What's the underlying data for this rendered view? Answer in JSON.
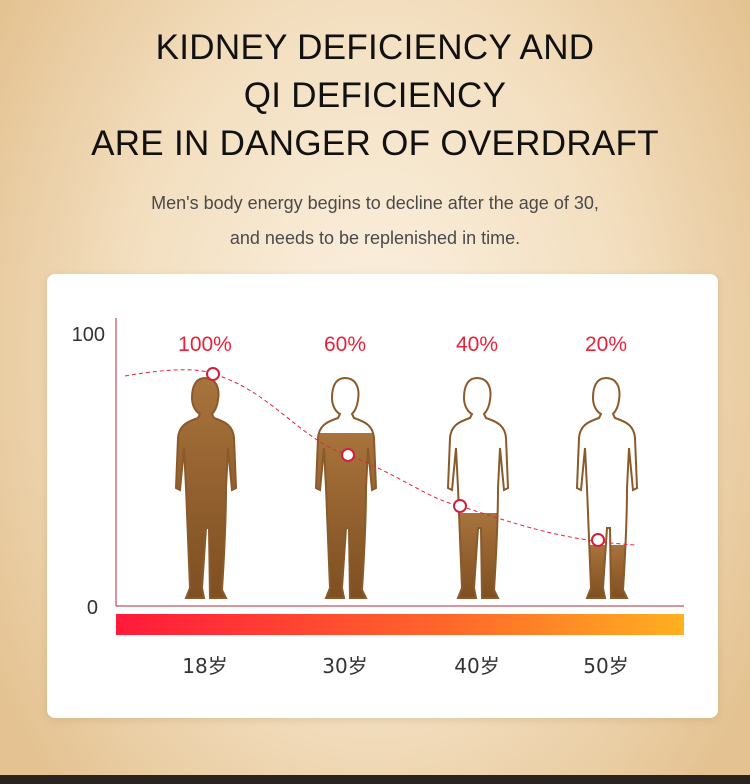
{
  "header": {
    "title_lines": [
      "KIDNEY DEFICIENCY AND",
      "QI DEFICIENCY",
      "ARE IN DANGER OF OVERDRAFT"
    ],
    "subtitle_lines": [
      "Men's body energy begins to decline after the age of 30,",
      "and needs to be replenished in time."
    ]
  },
  "chart_data": {
    "type": "line",
    "title": "",
    "xlabel": "",
    "ylabel": "",
    "ylim": [
      0,
      100
    ],
    "y_ticks": [
      "100",
      "0"
    ],
    "categories": [
      "18岁",
      "30岁",
      "40岁",
      "50岁"
    ],
    "values": [
      100,
      60,
      40,
      20
    ],
    "data_labels": [
      "100%",
      "60%",
      "40%",
      "20%"
    ],
    "colors": {
      "accent": "#e8223a",
      "figure": "#8a5a2b",
      "bar_start": "#ff1a3a",
      "bar_end": "#ffb020"
    }
  }
}
